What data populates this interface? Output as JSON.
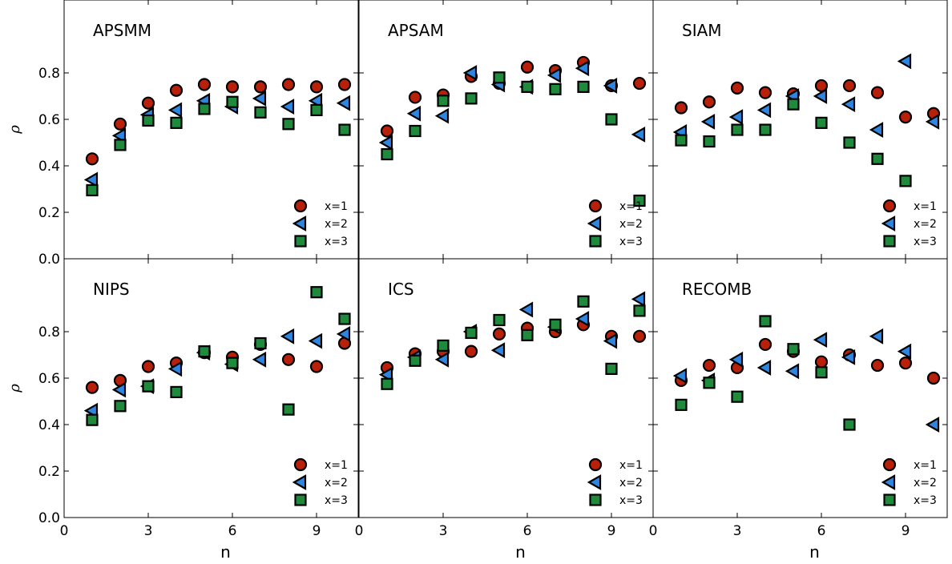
{
  "colors": {
    "x1": "#b8200a",
    "x2": "#2f86e0",
    "x3": "#1f8a3b"
  },
  "chart_data": [
    {
      "type": "scatter",
      "title": "APSMM",
      "xlabel": "n",
      "ylabel": "ρ",
      "xlim": [
        0,
        10.5
      ],
      "ylim": [
        0,
        1.05
      ],
      "xticks": [
        "0",
        "3",
        "6",
        "9"
      ],
      "yticks": [
        "0.0",
        "0.2",
        "0.4",
        "0.6",
        "0.8"
      ],
      "legend_placement": "lower-right",
      "x": [
        1,
        2,
        3,
        4,
        5,
        6,
        7,
        8,
        9,
        10
      ],
      "series": [
        {
          "name": "x=1",
          "marker": "circle",
          "values": [
            0.43,
            0.58,
            0.67,
            0.725,
            0.75,
            0.74,
            0.74,
            0.75,
            0.74,
            0.75
          ]
        },
        {
          "name": "x=2",
          "marker": "triangle-left",
          "values": [
            0.34,
            0.53,
            0.62,
            0.64,
            0.68,
            0.655,
            0.69,
            0.655,
            0.68,
            0.67
          ]
        },
        {
          "name": "x=3",
          "marker": "square",
          "values": [
            0.295,
            0.49,
            0.595,
            0.585,
            0.645,
            0.675,
            0.63,
            0.58,
            0.64,
            0.555
          ]
        }
      ]
    },
    {
      "type": "scatter",
      "title": "APSAM",
      "xlabel": "n",
      "ylabel": "",
      "xlim": [
        0,
        10.5
      ],
      "ylim": [
        0,
        1.05
      ],
      "xticks": [
        "0",
        "3",
        "6",
        "9"
      ],
      "yticks": [
        "0.0",
        "0.2",
        "0.4",
        "0.6",
        "0.8"
      ],
      "legend_placement": "lower-right",
      "x": [
        1,
        2,
        3,
        4,
        5,
        6,
        7,
        8,
        9,
        10
      ],
      "series": [
        {
          "name": "x=1",
          "marker": "circle",
          "values": [
            0.55,
            0.695,
            0.705,
            0.785,
            0.755,
            0.825,
            0.81,
            0.845,
            0.745,
            0.755
          ]
        },
        {
          "name": "x=2",
          "marker": "triangle-left",
          "values": [
            0.5,
            0.625,
            0.615,
            0.8,
            0.75,
            0.74,
            0.79,
            0.82,
            0.745,
            0.535
          ]
        },
        {
          "name": "x=3",
          "marker": "square",
          "values": [
            0.45,
            0.55,
            0.68,
            0.69,
            0.78,
            0.74,
            0.73,
            0.74,
            0.6,
            0.25
          ]
        }
      ]
    },
    {
      "type": "scatter",
      "title": "SIAM",
      "xlabel": "n",
      "ylabel": "",
      "xlim": [
        0,
        10.5
      ],
      "ylim": [
        0,
        1.05
      ],
      "xticks": [
        "0",
        "3",
        "6",
        "9"
      ],
      "yticks": [
        "0.0",
        "0.2",
        "0.4",
        "0.6",
        "0.8"
      ],
      "legend_placement": "lower-right",
      "x": [
        1,
        2,
        3,
        4,
        5,
        6,
        7,
        8,
        9,
        10
      ],
      "series": [
        {
          "name": "x=1",
          "marker": "circle",
          "values": [
            0.65,
            0.675,
            0.735,
            0.715,
            0.71,
            0.745,
            0.745,
            0.715,
            0.61,
            0.625
          ]
        },
        {
          "name": "x=2",
          "marker": "triangle-left",
          "values": [
            0.545,
            0.59,
            0.61,
            0.64,
            0.7,
            0.7,
            0.665,
            0.555,
            0.85,
            0.59
          ]
        },
        {
          "name": "x=3",
          "marker": "square",
          "values": [
            0.51,
            0.505,
            0.555,
            0.555,
            0.665,
            0.585,
            0.5,
            0.43,
            0.335,
            null
          ]
        }
      ]
    },
    {
      "type": "scatter",
      "title": "NIPS",
      "xlabel": "n",
      "ylabel": "ρ",
      "xlim": [
        0,
        10.5
      ],
      "ylim": [
        0,
        1.05
      ],
      "xticks": [
        "0",
        "3",
        "6",
        "9"
      ],
      "yticks": [
        "0.0",
        "0.2",
        "0.4",
        "0.6",
        "0.8"
      ],
      "legend_placement": "lower-right",
      "x": [
        1,
        2,
        3,
        4,
        5,
        6,
        7,
        8,
        9,
        10
      ],
      "series": [
        {
          "name": "x=1",
          "marker": "circle",
          "values": [
            0.56,
            0.59,
            0.65,
            0.665,
            0.71,
            0.69,
            0.745,
            0.68,
            0.65,
            0.75
          ]
        },
        {
          "name": "x=2",
          "marker": "triangle-left",
          "values": [
            0.46,
            0.55,
            0.565,
            0.64,
            0.71,
            0.66,
            0.68,
            0.78,
            0.76,
            0.79
          ]
        },
        {
          "name": "x=3",
          "marker": "square",
          "values": [
            0.42,
            0.48,
            0.565,
            0.54,
            0.715,
            0.665,
            0.75,
            0.465,
            0.97,
            0.855
          ]
        }
      ]
    },
    {
      "type": "scatter",
      "title": "ICS",
      "xlabel": "n",
      "ylabel": "",
      "xlim": [
        0,
        10.5
      ],
      "ylim": [
        0,
        1.05
      ],
      "xticks": [
        "0",
        "3",
        "6",
        "9"
      ],
      "yticks": [
        "0.0",
        "0.2",
        "0.4",
        "0.6",
        "0.8"
      ],
      "legend_placement": "lower-right",
      "x": [
        1,
        2,
        3,
        4,
        5,
        6,
        7,
        8,
        9,
        10
      ],
      "series": [
        {
          "name": "x=1",
          "marker": "circle",
          "values": [
            0.645,
            0.705,
            0.715,
            0.715,
            0.79,
            0.815,
            0.8,
            0.83,
            0.78,
            0.78
          ]
        },
        {
          "name": "x=2",
          "marker": "triangle-left",
          "values": [
            0.615,
            0.69,
            0.68,
            0.8,
            0.72,
            0.895,
            0.82,
            0.855,
            0.76,
            0.94
          ]
        },
        {
          "name": "x=3",
          "marker": "square",
          "values": [
            0.575,
            0.675,
            0.74,
            0.795,
            0.85,
            0.785,
            0.83,
            0.93,
            0.64,
            0.89
          ]
        }
      ]
    },
    {
      "type": "scatter",
      "title": "RECOMB",
      "xlabel": "n",
      "ylabel": "",
      "xlim": [
        0,
        10.5
      ],
      "ylim": [
        0,
        1.05
      ],
      "xticks": [
        "0",
        "3",
        "6",
        "9"
      ],
      "yticks": [
        "0.0",
        "0.2",
        "0.4",
        "0.6",
        "0.8"
      ],
      "legend_placement": "lower-right",
      "x": [
        1,
        2,
        3,
        4,
        5,
        6,
        7,
        8,
        9,
        10
      ],
      "series": [
        {
          "name": "x=1",
          "marker": "circle",
          "values": [
            0.59,
            0.655,
            0.645,
            0.745,
            0.715,
            0.67,
            0.7,
            0.655,
            0.665,
            0.6
          ]
        },
        {
          "name": "x=2",
          "marker": "triangle-left",
          "values": [
            0.61,
            0.59,
            0.68,
            0.645,
            0.63,
            0.765,
            0.69,
            0.78,
            0.715,
            0.4
          ]
        },
        {
          "name": "x=3",
          "marker": "square",
          "values": [
            0.485,
            0.58,
            0.52,
            0.845,
            0.725,
            0.625,
            0.4,
            null,
            null,
            null
          ]
        }
      ]
    }
  ]
}
